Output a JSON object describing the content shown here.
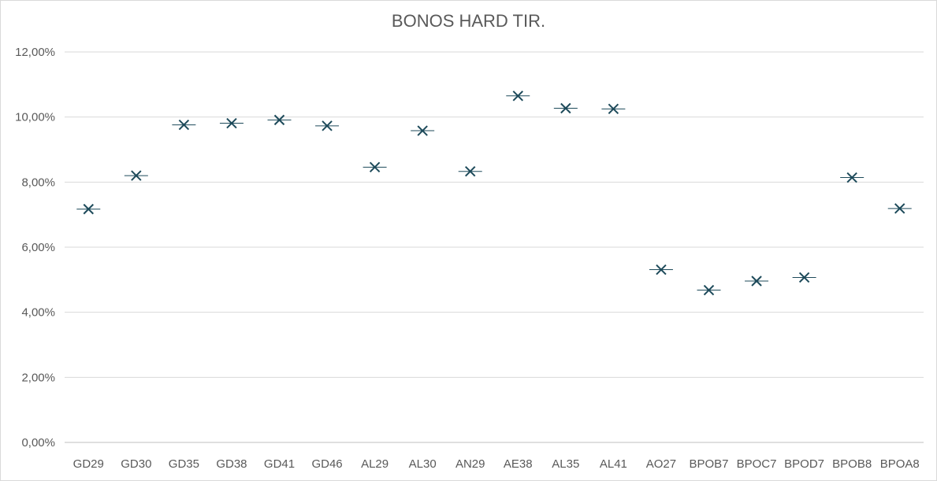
{
  "chart_data": {
    "type": "scatter",
    "title": "BONOS HARD TIR.",
    "xlabel": "",
    "ylabel": "",
    "ylim": [
      0,
      12
    ],
    "y_ticks": [
      "0,00%",
      "2,00%",
      "4,00%",
      "6,00%",
      "8,00%",
      "10,00%",
      "12,00%"
    ],
    "grid": true,
    "legend": "none",
    "marker": "x-with-dash",
    "color": "#1d4a5a",
    "categories": [
      "GD29",
      "GD30",
      "GD35",
      "GD38",
      "GD41",
      "GD46",
      "AL29",
      "AL30",
      "AN29",
      "AE38",
      "AL35",
      "AL41",
      "AO27",
      "BPOB7",
      "BPOC7",
      "BPOD7",
      "BPOB8",
      "BPOA8"
    ],
    "values": [
      7.17,
      8.2,
      9.76,
      9.81,
      9.91,
      9.73,
      8.46,
      9.58,
      8.33,
      10.65,
      10.27,
      10.25,
      5.31,
      4.68,
      4.96,
      5.07,
      8.14,
      7.19
    ]
  }
}
